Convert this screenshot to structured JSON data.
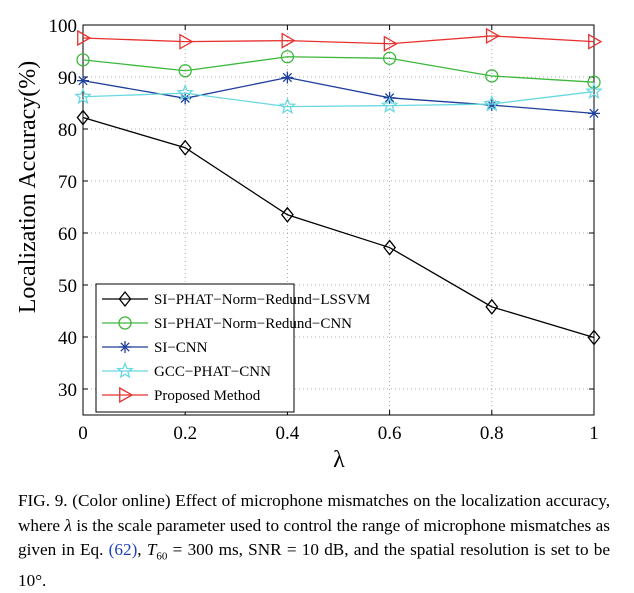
{
  "chart_data": {
    "type": "line",
    "title": "",
    "xlabel": "λ",
    "ylabel": "Localization Accuracy(%)",
    "xlim": [
      0,
      1
    ],
    "ylim": [
      25,
      100
    ],
    "x": [
      0,
      0.2,
      0.4,
      0.6,
      0.8,
      1
    ],
    "x_ticks": [
      "0",
      "0.2",
      "0.4",
      "0.6",
      "0.8",
      "1"
    ],
    "y_ticks": [
      30,
      40,
      50,
      60,
      70,
      80,
      90,
      100
    ],
    "grid": true,
    "legend_position": "bottom-left",
    "series": [
      {
        "name": "SI−PHAT−Norm−Redund−LSSVM",
        "color": "#000000",
        "marker": "diamond",
        "values": [
          82.2,
          76.4,
          63.5,
          57.2,
          45.8,
          39.9
        ]
      },
      {
        "name": "SI−PHAT−Norm−Redund−CNN",
        "color": "#3db83d",
        "marker": "circle",
        "values": [
          93.3,
          91.2,
          93.9,
          93.6,
          90.2,
          89.0
        ]
      },
      {
        "name": "SI−CNN",
        "color": "#1e3f9a",
        "marker": "asterisk",
        "values": [
          89.3,
          85.9,
          89.9,
          86.0,
          84.6,
          83.0
        ]
      },
      {
        "name": "GCC−PHAT−CNN",
        "color": "#6ad8e0",
        "marker": "star",
        "values": [
          86.2,
          86.9,
          84.3,
          84.5,
          84.8,
          87.2
        ]
      },
      {
        "name": "Proposed Method",
        "color": "#e8312f",
        "marker": "triangle-right",
        "values": [
          97.5,
          96.8,
          97.0,
          96.4,
          97.9,
          96.8
        ]
      }
    ]
  },
  "caption": {
    "lead": "FIG. 9. (Color online) Effect of microphone mismatches on the localization accuracy, where ",
    "lambda": "λ",
    "middle": " is the scale parameter used to control the range of microphone mismatches as given in Eq. ",
    "ref": "(62)",
    "sep": ", ",
    "t60_base": "T",
    "t60_sub": "60",
    "t60_value": " = 300 ms, SNR = 10 dB, and the spatial resolution is set to be 10°."
  }
}
